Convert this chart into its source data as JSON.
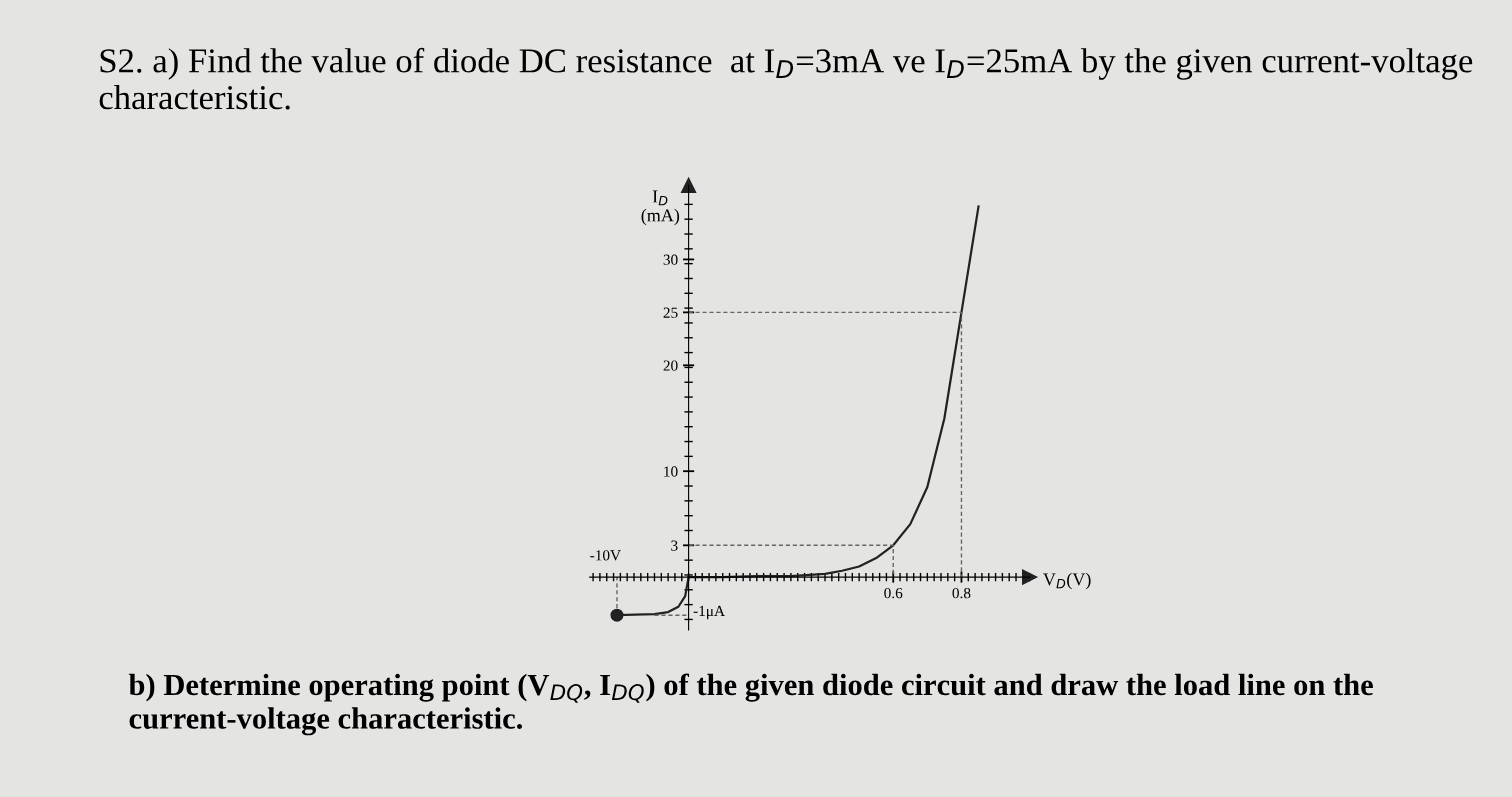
{
  "chart_data": {
    "type": "line",
    "title": "S2. a) Find the value of diode DC resistance  at I$_{D}$=3mA ve I$_{D}$=25mA by the given current-voltage characteristic.",
    "xlabel": "V$_{D}$(V)",
    "ylabel": "I$_{D}$\n(mA)",
    "annotations": [
      "b) Determine operating point (V$_{DQ}$, I$_{DQ}$) of the given diode circuit and draw the load line on the current-voltage characteristic.",
      "-10V",
      "-1μA"
    ],
    "xlim": [
      -0.29,
      1.0
    ],
    "ylim": [
      -5,
      37
    ],
    "xticks": [
      0.6,
      0.8
    ],
    "yticks": [
      3,
      10,
      20,
      25,
      30
    ],
    "grid": false,
    "series": [
      {
        "type": "line",
        "color": "#222222",
        "line_style": "solid",
        "marker": "none",
        "x": [
          0,
          0.1,
          0.2,
          0.3,
          0.4,
          0.45,
          0.5,
          0.55,
          0.6,
          0.65,
          0.7,
          0.75,
          0.8,
          0.85
        ],
        "values": [
          0,
          0,
          0.1,
          0.1,
          0.3,
          0.6,
          1.0,
          1.8,
          3,
          5,
          8.5,
          15,
          25,
          35
        ]
      },
      {
        "type": "line",
        "color": "#222222",
        "line_style": "solid",
        "marker": "none",
        "x": [
          -0.21,
          -0.1,
          -0.06,
          -0.03,
          -0.01,
          0
        ],
        "values": [
          -3.6,
          -3.5,
          -3.3,
          -2.8,
          -1.8,
          0
        ]
      },
      {
        "type": "scatter",
        "color": "#222222",
        "marker": "circle",
        "x": [
          -0.21
        ],
        "values": [
          -3.6
        ]
      },
      {
        "type": "line",
        "color": "#666666",
        "line_style": "dashed",
        "marker": "none",
        "x": [
          0,
          0.6,
          0.6
        ],
        "values": [
          3,
          3,
          0
        ]
      },
      {
        "type": "line",
        "color": "#666666",
        "line_style": "dashed",
        "marker": "none",
        "x": [
          0,
          0.8,
          0.8
        ],
        "values": [
          25,
          25,
          0
        ]
      },
      {
        "type": "line",
        "color": "#666666",
        "line_style": "dashed",
        "marker": "none",
        "x": [
          -0.1,
          0
        ],
        "values": [
          -3.6,
          -3.6
        ]
      },
      {
        "type": "line",
        "color": "#666666",
        "line_style": "dashed",
        "marker": "none",
        "x": [
          -0.21,
          -0.21
        ],
        "values": [
          -3.6,
          0
        ]
      }
    ]
  }
}
